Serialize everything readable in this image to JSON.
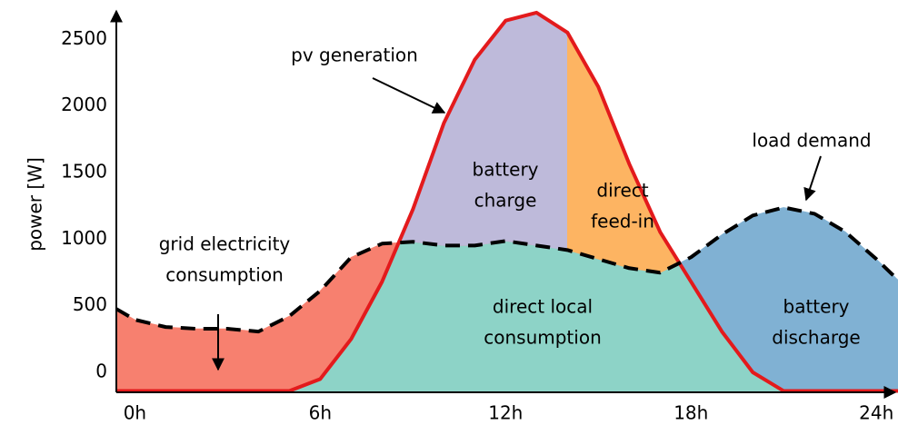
{
  "chart_data": {
    "type": "area",
    "ylabel": "power [W]",
    "x": [
      -0.6,
      0,
      1,
      2,
      3,
      4,
      5,
      6,
      7,
      8,
      9,
      10,
      11,
      12,
      13,
      14,
      15,
      16,
      17,
      18,
      19,
      20,
      21,
      22,
      23,
      24,
      24.7
    ],
    "series": [
      {
        "name": "pv generation",
        "color": "#e31a1c",
        "style": "solid",
        "values": [
          -140,
          -140,
          -140,
          -140,
          -140,
          -140,
          -140,
          -50,
          250,
          680,
          1224,
          1870,
          2347,
          2640,
          2700,
          2551,
          2143,
          1565,
          1054,
          680,
          306,
          0,
          -140,
          -140,
          -140,
          -140,
          -140
        ]
      },
      {
        "name": "load demand",
        "color": "#000000",
        "style": "dashed",
        "values": [
          476,
          395,
          340,
          327,
          327,
          306,
          422,
          612,
          864,
          966,
          980,
          952,
          952,
          986,
          952,
          918,
          850,
          782,
          748,
          864,
          1034,
          1177,
          1238,
          1190,
          1054,
          850,
          694
        ]
      }
    ],
    "areas": [
      {
        "lines": [
          "direct local",
          "consumption"
        ],
        "color": "#8dd3c7"
      },
      {
        "lines": [
          "grid electricity",
          "consumption"
        ],
        "color": "#f7806f"
      },
      {
        "lines": [
          "battery",
          "discharge"
        ],
        "color": "#80b1d3"
      },
      {
        "lines": [
          "battery",
          "charge"
        ],
        "color": "#bebada"
      },
      {
        "lines": [
          "direct",
          "feed-in"
        ],
        "color": "#fdb462"
      }
    ],
    "xlim": [
      -0.6,
      24.7
    ],
    "ylim": [
      -150,
      2720
    ],
    "xticks": [
      {
        "value": 0,
        "label": "0h"
      },
      {
        "value": 6,
        "label": "6h"
      },
      {
        "value": 12,
        "label": "12h"
      },
      {
        "value": 18,
        "label": "18h"
      },
      {
        "value": 24,
        "label": "24h"
      }
    ],
    "yticks": [
      0,
      500,
      1000,
      1500,
      2000,
      2500
    ]
  }
}
